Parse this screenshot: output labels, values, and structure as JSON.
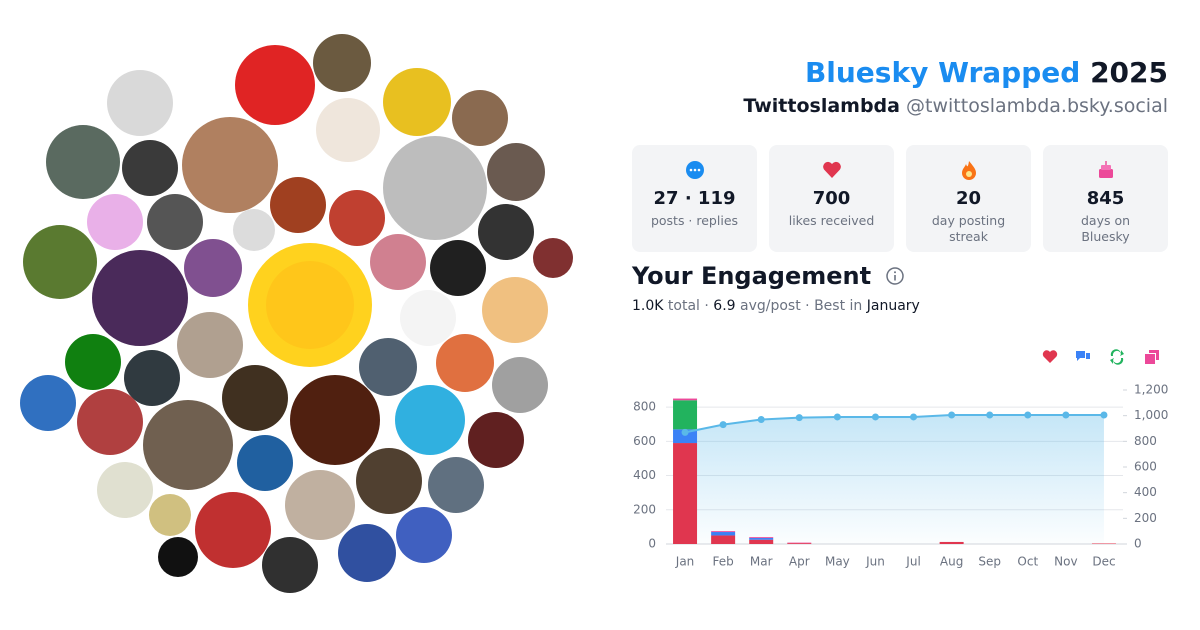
{
  "header": {
    "title": "Bluesky Wrapped",
    "year": "2025",
    "name": "Twittoslambda",
    "handle": "@twittoslambda.bsky.social"
  },
  "stats": [
    {
      "value": "27 · 119",
      "label": "posts · replies"
    },
    {
      "value": "700",
      "label": "likes received"
    },
    {
      "value": "20",
      "label": "day posting streak"
    },
    {
      "value": "845",
      "label": "days on Bluesky"
    }
  ],
  "engagement": {
    "title": "Your Engagement",
    "total": "1.0K",
    "total_label": "total",
    "separator": "·",
    "avg": "6.9",
    "avg_label": "avg/post",
    "best_label": "Best in",
    "best": "January"
  },
  "chart_data": {
    "type": "bar",
    "categories": [
      "Jan",
      "Feb",
      "Mar",
      "Apr",
      "May",
      "Jun",
      "Jul",
      "Aug",
      "Sep",
      "Oct",
      "Nov",
      "Dec"
    ],
    "series": [
      {
        "color": "#e0364f",
        "values": [
          590,
          50,
          25,
          5,
          0,
          0,
          0,
          12,
          0,
          0,
          0,
          3
        ]
      },
      {
        "color": "#3b82f6",
        "values": [
          80,
          20,
          10,
          0,
          0,
          0,
          0,
          0,
          0,
          0,
          0,
          0
        ]
      },
      {
        "color": "#22b35e",
        "values": [
          170,
          0,
          0,
          0,
          0,
          0,
          0,
          0,
          0,
          0,
          0,
          0
        ]
      },
      {
        "color": "#ec4899",
        "values": [
          10,
          5,
          5,
          3,
          0,
          0,
          0,
          0,
          0,
          0,
          0,
          0
        ]
      }
    ],
    "line": {
      "type": "line",
      "axis": "y2",
      "color": "#5ab8e8",
      "values": [
        870,
        930,
        970,
        985,
        990,
        990,
        990,
        1005,
        1005,
        1005,
        1005,
        1005
      ]
    },
    "ylim": [
      0,
      900
    ],
    "yticks": [
      0,
      200,
      400,
      600,
      800
    ],
    "y2lim": [
      0,
      1200
    ],
    "y2ticks": [
      0,
      200,
      400,
      600,
      800,
      {
        "value": 1000,
        "label": "1,000"
      },
      {
        "value": 1200,
        "label": "1,200"
      }
    ],
    "grid": true
  }
}
